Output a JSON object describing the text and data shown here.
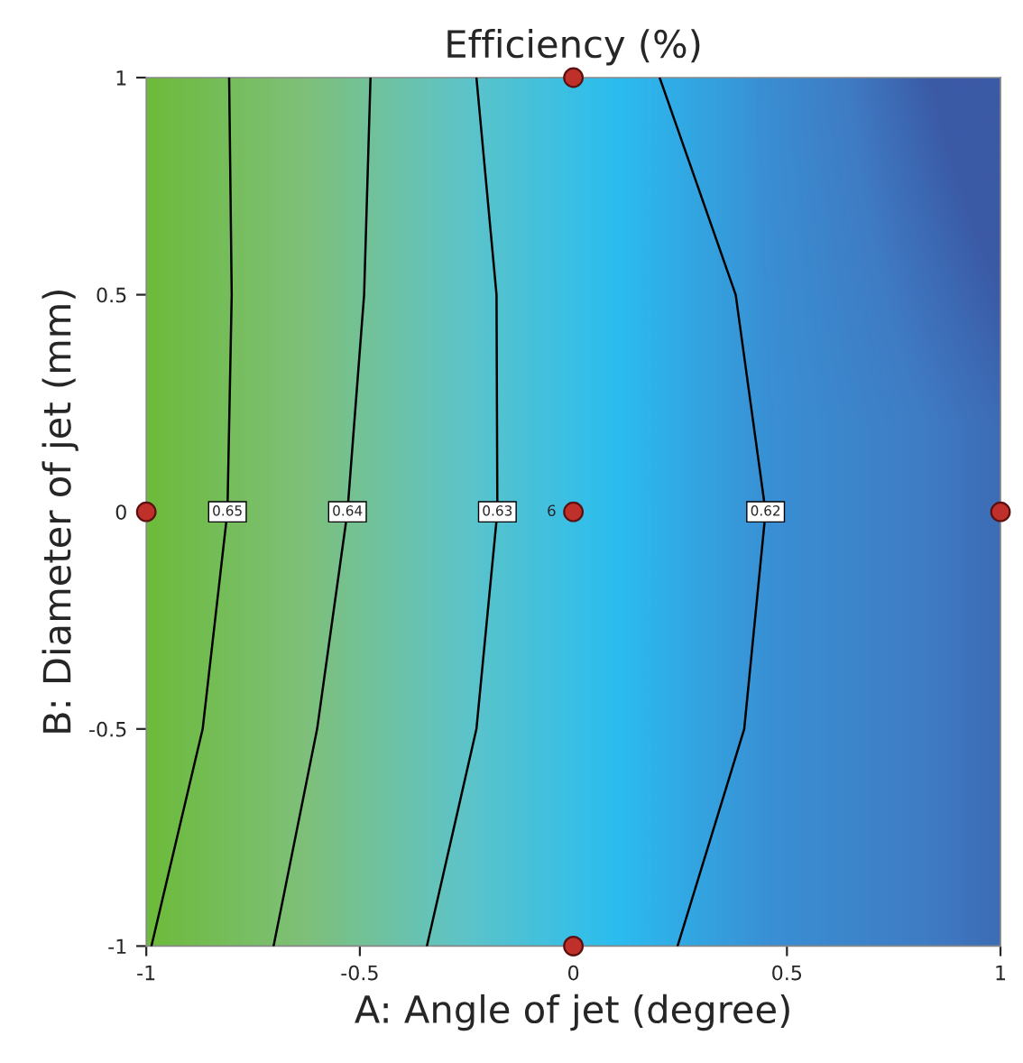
{
  "chart_data": {
    "type": "line",
    "title": "Efficiency (%)",
    "xlabel": "A: Angle of jet (degree)",
    "ylabel": "B: Diameter of jet (mm)",
    "xlim": [
      -1,
      1
    ],
    "ylim": [
      -1,
      1
    ],
    "xticks": [
      -1,
      -0.5,
      0,
      0.5,
      1
    ],
    "yticks": [
      -1,
      -0.5,
      0,
      0.5,
      1
    ],
    "grid": false,
    "legend": false,
    "series": [
      {
        "name": "0.65",
        "color": "#000000",
        "marker": "none",
        "x": [
          -0.806,
          -0.8,
          -0.81,
          -0.868,
          -0.988
        ],
        "values": [
          1,
          0.5,
          0,
          -0.5,
          -1
        ]
      },
      {
        "name": "0.64",
        "color": "#000000",
        "marker": "none",
        "x": [
          -0.475,
          -0.49,
          -0.529,
          -0.6,
          -0.702
        ],
        "values": [
          1,
          0.5,
          0,
          -0.5,
          -1
        ]
      },
      {
        "name": "0.63",
        "color": "#000000",
        "marker": "none",
        "x": [
          -0.227,
          -0.18,
          -0.178,
          -0.227,
          -0.343
        ],
        "values": [
          1,
          0.5,
          0,
          -0.5,
          -1
        ]
      },
      {
        "name": "0.62",
        "color": "#000000",
        "marker": "none",
        "x": [
          0.202,
          0.38,
          0.45,
          0.4,
          0.244
        ],
        "values": [
          1,
          0.5,
          0,
          -0.5,
          -1
        ]
      },
      {
        "type": "scatter",
        "color": "#c0302a",
        "marker": "circle",
        "x": [
          -1,
          0,
          0,
          0,
          1
        ],
        "values": [
          0,
          1,
          0,
          -1,
          0
        ]
      }
    ],
    "annotations": [
      {
        "text": "6",
        "x": -0.04,
        "y": 0
      }
    ]
  }
}
